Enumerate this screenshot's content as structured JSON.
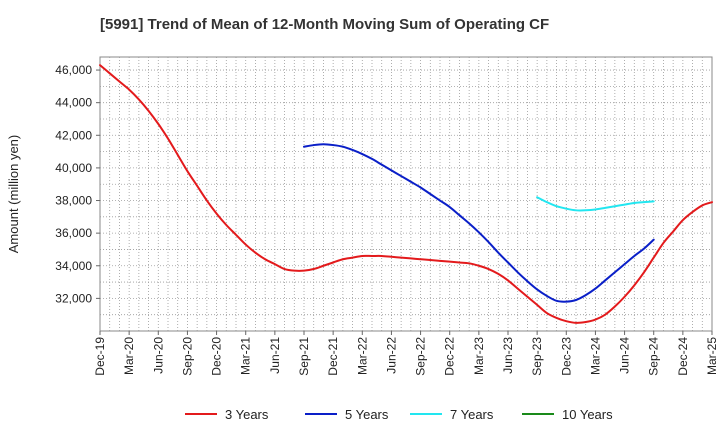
{
  "chart_data": {
    "type": "line",
    "title": "[5991]  Trend of Mean of 12-Month Moving Sum of Operating CF",
    "xlabel": "",
    "ylabel": "Amount (million yen)",
    "ylim": [
      30000,
      46800
    ],
    "yticks": [
      32000,
      34000,
      36000,
      38000,
      40000,
      42000,
      44000,
      46000
    ],
    "ytick_labels": [
      "32,000",
      "34,000",
      "36,000",
      "38,000",
      "40,000",
      "42,000",
      "44,000",
      "46,000"
    ],
    "xticks": [
      "Dec-19",
      "Mar-20",
      "Jun-20",
      "Sep-20",
      "Dec-20",
      "Mar-21",
      "Jun-21",
      "Sep-21",
      "Dec-21",
      "Mar-22",
      "Jun-22",
      "Sep-22",
      "Dec-22",
      "Mar-23",
      "Jun-23",
      "Sep-23",
      "Dec-23",
      "Mar-24",
      "Jun-24",
      "Sep-24",
      "Dec-24",
      "Mar-25"
    ],
    "x_start": "Dec-19",
    "x_end": "Mar-25",
    "x_months_total": 63,
    "grid": true,
    "legend_position": "bottom",
    "series": [
      {
        "name": "3 Years",
        "color": "#e31a1c",
        "start_month": 0,
        "values": [
          46300,
          45800,
          45300,
          44800,
          44200,
          43500,
          42700,
          41800,
          40800,
          39800,
          38900,
          38000,
          37200,
          36500,
          35900,
          35300,
          34800,
          34400,
          34100,
          33800,
          33700,
          33700,
          33800,
          34000,
          34200,
          34400,
          34500,
          34600,
          34600,
          34600,
          34550,
          34500,
          34450,
          34400,
          34350,
          34300,
          34250,
          34200,
          34150,
          34000,
          33800,
          33500,
          33100,
          32600,
          32100,
          31600,
          31100,
          30800,
          30600,
          30500,
          30550,
          30700,
          31000,
          31500,
          32100,
          32800,
          33600,
          34500,
          35400,
          36100,
          36800,
          37300,
          37700,
          37900
        ]
      },
      {
        "name": "5 Years",
        "color": "#0a1fc8",
        "start_month": 21,
        "values": [
          41300,
          41400,
          41450,
          41400,
          41300,
          41100,
          40850,
          40550,
          40200,
          39850,
          39500,
          39150,
          38800,
          38400,
          38000,
          37600,
          37100,
          36600,
          36050,
          35450,
          34800,
          34200,
          33600,
          33050,
          32550,
          32150,
          31850,
          31800,
          31900,
          32200,
          32600,
          33100,
          33600,
          34100,
          34600,
          35050,
          35600
        ]
      },
      {
        "name": "7 Years",
        "color": "#22e6f0",
        "start_month": 45,
        "values": [
          38200,
          37900,
          37650,
          37500,
          37400,
          37400,
          37450,
          37550,
          37650,
          37750,
          37850,
          37900,
          37950
        ]
      },
      {
        "name": "10 Years",
        "color": "#1a8a1a",
        "start_month": 0,
        "values": []
      }
    ]
  }
}
